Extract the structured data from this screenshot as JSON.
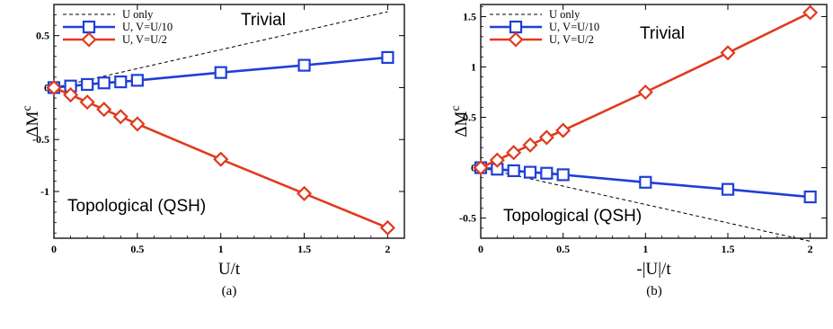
{
  "chart_data": [
    {
      "type": "line",
      "caption": "(a)",
      "xlabel": "U/t",
      "ylabel": "ΔM",
      "ylabel_sup": "c",
      "xlim": [
        0,
        2.1
      ],
      "ylim": [
        -1.45,
        0.8
      ],
      "xticks": [
        0,
        0.5,
        1,
        1.5,
        2
      ],
      "xtick_labels": [
        "0",
        "0.5",
        "1",
        "1.5",
        "2"
      ],
      "yticks": [
        -1,
        -0.5,
        0,
        0.5
      ],
      "ytick_labels": [
        "-1",
        "-0.5",
        "0",
        "0.5"
      ],
      "regions": {
        "top": "Trivial",
        "bottom": "Topological (QSH)"
      },
      "legend_position": "top-left",
      "series": [
        {
          "name": "U only",
          "color": "#000000",
          "style": "dashed",
          "marker": "none",
          "x": [
            0,
            2
          ],
          "y": [
            0,
            0.73
          ]
        },
        {
          "name": "U, V=U/10",
          "color": "#1f3fd6",
          "style": "solid",
          "marker": "square",
          "x": [
            0,
            0.1,
            0.2,
            0.3,
            0.4,
            0.5,
            1.0,
            1.5,
            2.0
          ],
          "y": [
            0,
            0.015,
            0.03,
            0.045,
            0.055,
            0.07,
            0.145,
            0.215,
            0.29
          ]
        },
        {
          "name": "U, V=U/2",
          "color": "#e03a1e",
          "style": "solid",
          "marker": "diamond",
          "x": [
            0,
            0.1,
            0.2,
            0.3,
            0.4,
            0.5,
            1.0,
            1.5,
            2.0
          ],
          "y": [
            0,
            -0.07,
            -0.14,
            -0.21,
            -0.28,
            -0.35,
            -0.69,
            -1.02,
            -1.35
          ]
        }
      ]
    },
    {
      "type": "line",
      "caption": "(b)",
      "xlabel": "-|U|/t",
      "ylabel": "ΔM",
      "ylabel_sup": "c",
      "xlim": [
        0,
        2.1
      ],
      "ylim": [
        -0.7,
        1.62
      ],
      "xticks": [
        0,
        0.5,
        1,
        1.5,
        2
      ],
      "xtick_labels": [
        "0",
        "0.5",
        "1",
        "1.5",
        "2"
      ],
      "yticks": [
        -0.5,
        0,
        0.5,
        1,
        1.5
      ],
      "ytick_labels": [
        "-0.5",
        "0",
        "0.5",
        "1",
        "1.5"
      ],
      "regions": {
        "top": "Trivial",
        "bottom": "Topological (QSH)"
      },
      "legend_position": "top-left",
      "series": [
        {
          "name": "U only",
          "color": "#000000",
          "style": "dashed",
          "marker": "none",
          "x": [
            0,
            2
          ],
          "y": [
            0,
            -0.73
          ]
        },
        {
          "name": "U, V=U/10",
          "color": "#1f3fd6",
          "style": "solid",
          "marker": "square",
          "x": [
            0,
            0.1,
            0.2,
            0.3,
            0.4,
            0.5,
            1.0,
            1.5,
            2.0
          ],
          "y": [
            0,
            -0.015,
            -0.03,
            -0.045,
            -0.055,
            -0.07,
            -0.145,
            -0.215,
            -0.29
          ]
        },
        {
          "name": "U, V=U/2",
          "color": "#e03a1e",
          "style": "solid",
          "marker": "diamond",
          "x": [
            0,
            0.1,
            0.2,
            0.3,
            0.4,
            0.5,
            1.0,
            1.5,
            2.0
          ],
          "y": [
            0,
            0.075,
            0.15,
            0.225,
            0.3,
            0.37,
            0.75,
            1.14,
            1.54
          ]
        }
      ]
    }
  ]
}
